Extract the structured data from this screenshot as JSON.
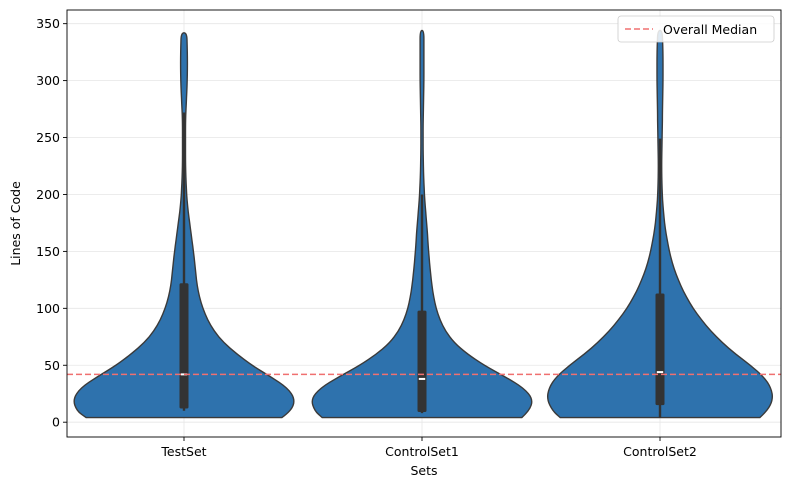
{
  "chart_data": {
    "type": "violin",
    "title": "",
    "xlabel": "Sets",
    "ylabel": "Lines of Code",
    "ylim": [
      -13,
      362
    ],
    "yticks": [
      0,
      50,
      100,
      150,
      200,
      250,
      300,
      350
    ],
    "grid": true,
    "categories": [
      "TestSet",
      "ControlSet1",
      "ControlSet2"
    ],
    "violin_color": "#2e72ad",
    "edge_color": "#3a3a3a",
    "box_color": "#333333",
    "median_color": "#ffffff",
    "series": [
      {
        "name": "TestSet",
        "min": 4,
        "max": 342,
        "q1": 12,
        "median": 42,
        "q3": 122,
        "whisker_low": 10,
        "whisker_high": 272,
        "density_y": [
          4,
          10,
          20,
          30,
          40,
          50,
          60,
          70,
          80,
          90,
          100,
          110,
          120,
          130,
          140,
          150,
          160,
          170,
          180,
          190,
          200,
          210,
          220,
          230,
          240,
          250,
          260,
          270,
          280,
          290,
          300,
          310,
          320,
          330,
          342
        ],
        "density_width": [
          0.52,
          0.57,
          0.59,
          0.55,
          0.46,
          0.36,
          0.28,
          0.21,
          0.16,
          0.125,
          0.1,
          0.082,
          0.07,
          0.063,
          0.057,
          0.05,
          0.042,
          0.034,
          0.026,
          0.019,
          0.014,
          0.011,
          0.009,
          0.008,
          0.008,
          0.008,
          0.008,
          0.009,
          0.012,
          0.015,
          0.017,
          0.018,
          0.018,
          0.017,
          0.015
        ]
      },
      {
        "name": "ControlSet1",
        "min": 4,
        "max": 344,
        "q1": 9,
        "median": 38,
        "q3": 98,
        "whisker_low": 8,
        "whisker_high": 200,
        "density_y": [
          4,
          10,
          20,
          30,
          40,
          50,
          60,
          70,
          80,
          90,
          100,
          110,
          120,
          130,
          140,
          150,
          160,
          170,
          180,
          190,
          200,
          210,
          220,
          230,
          240,
          250,
          260,
          270,
          280,
          290,
          300,
          310,
          320,
          330,
          344
        ],
        "density_width": [
          0.53,
          0.57,
          0.59,
          0.54,
          0.44,
          0.33,
          0.24,
          0.17,
          0.125,
          0.095,
          0.075,
          0.062,
          0.053,
          0.046,
          0.04,
          0.035,
          0.031,
          0.027,
          0.022,
          0.017,
          0.013,
          0.01,
          0.008,
          0.007,
          0.006,
          0.006,
          0.006,
          0.007,
          0.008,
          0.009,
          0.01,
          0.01,
          0.01,
          0.01,
          0.01
        ]
      },
      {
        "name": "ControlSet2",
        "min": 4,
        "max": 344,
        "q1": 15,
        "median": 44,
        "q3": 113,
        "whisker_low": 4,
        "whisker_high": 249,
        "density_y": [
          4,
          10,
          20,
          30,
          40,
          50,
          60,
          70,
          80,
          90,
          100,
          110,
          120,
          130,
          140,
          150,
          160,
          170,
          180,
          190,
          200,
          210,
          220,
          230,
          240,
          250,
          260,
          270,
          280,
          290,
          300,
          310,
          320,
          330,
          344
        ],
        "density_width": [
          0.53,
          0.57,
          0.6,
          0.59,
          0.55,
          0.48,
          0.4,
          0.33,
          0.27,
          0.22,
          0.175,
          0.14,
          0.11,
          0.085,
          0.065,
          0.05,
          0.038,
          0.028,
          0.021,
          0.016,
          0.012,
          0.01,
          0.009,
          0.009,
          0.01,
          0.011,
          0.012,
          0.013,
          0.014,
          0.015,
          0.016,
          0.016,
          0.016,
          0.015,
          0.012
        ]
      }
    ],
    "overall_median": 42,
    "overall_median_color": "#f07070",
    "legend": {
      "position": "top-right",
      "entries": [
        "Overall Median"
      ]
    }
  }
}
